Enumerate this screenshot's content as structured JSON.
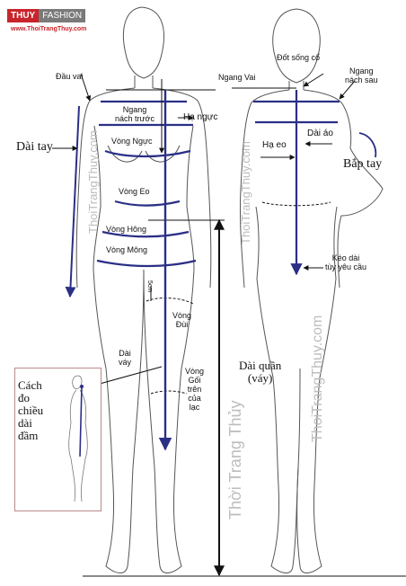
{
  "logo": {
    "brand_a": "THUY",
    "brand_b": "FASHION",
    "website": "www.ThoiTrangThuy.com"
  },
  "colors": {
    "measure": "#2b2f86",
    "body": "#555555",
    "accent": "#c9242b",
    "watermark": "#bdbdbd"
  },
  "labels": {
    "dau_vai": "Đầu vai",
    "ngang_nach_truoc": "Ngang\nnách trước",
    "ha_nguc": "Hạ ngực",
    "vong_nguc": "Vòng Ngực",
    "dai_tay": "Dài tay",
    "vong_eo": "Vòng Eo",
    "vong_hong": "Vòng Hông",
    "vong_mong": "Vòng Mông",
    "cm5": "5cm",
    "vong_dui": "Vòng\nĐùi",
    "dai_vay": "Dài\nváy",
    "vong_goi": "Vòng\nGối\ntrên\ncủa\nlạc",
    "dai_quan": "Dài quần\n(váy)",
    "dot_song_co": "Đốt sống cổ",
    "ngang_vai": "Ngang Vai",
    "ngang_nach_sau": "Ngang\nnách sau",
    "dai_ao": "Dài áo",
    "ha_eo": "Hạ eo",
    "bap_tay": "Bắp tay",
    "keo_dai": "Kéo dài\ntùy yêu cầu",
    "cach_do": "Cách\nđo\nchiều\ndài\nđầm"
  },
  "watermarks": [
    "ThoiTrangThuy.com",
    "ThoiTrangThuy.com",
    "Thời Trang Thủy",
    "ThoiTrangThuy.com"
  ]
}
